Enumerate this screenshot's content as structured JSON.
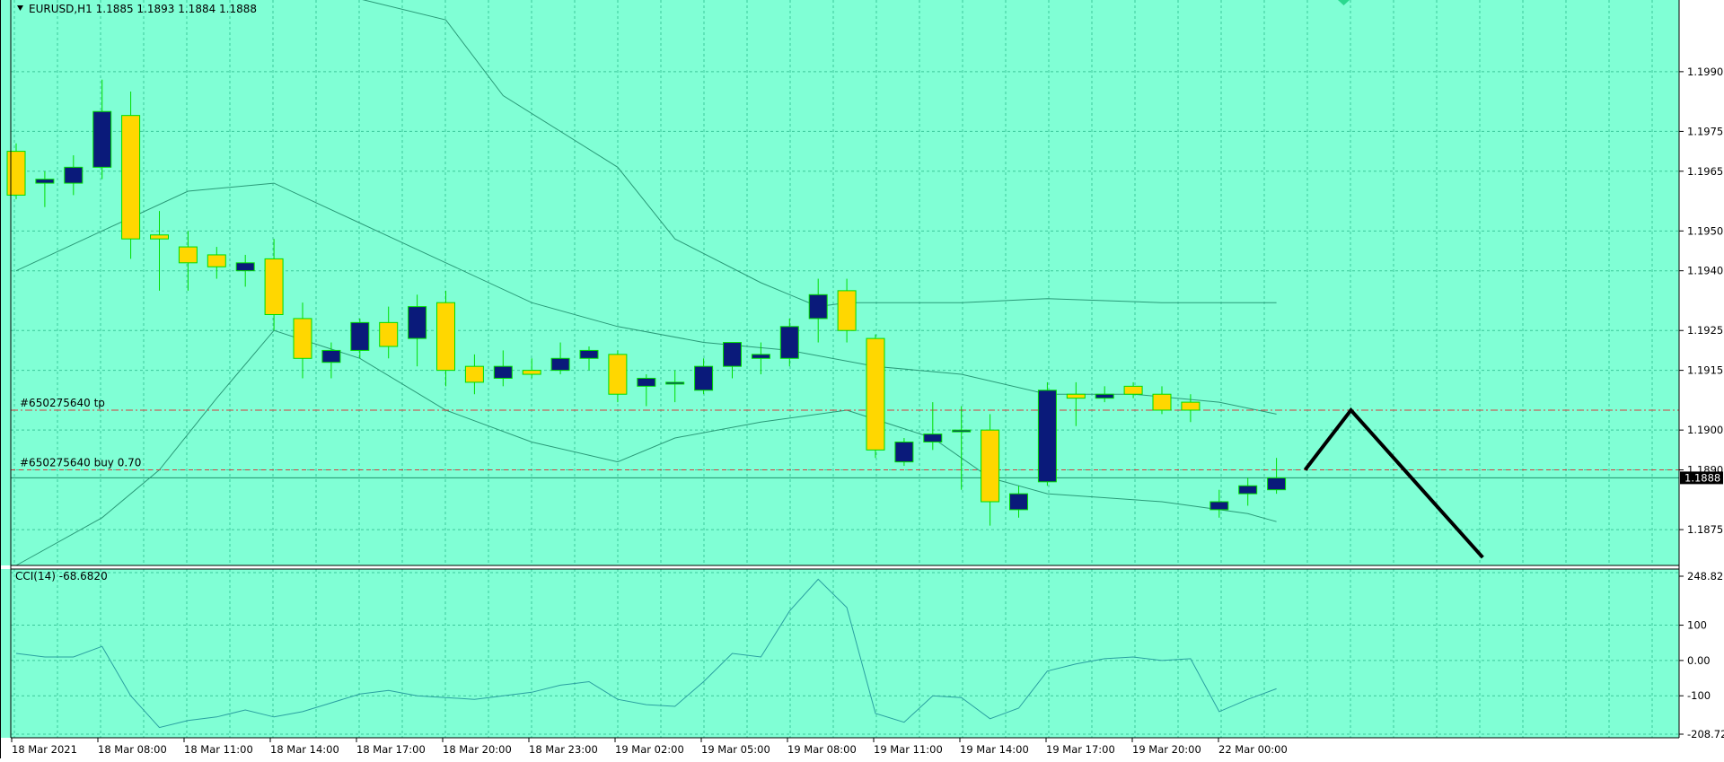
{
  "window": {
    "header": "EURUSD,H1  1.1885 1.1893 1.1884 1.1888",
    "sub_header": "CCI(14) -68.6820"
  },
  "colors": {
    "background": "#80ffd5",
    "grid": "#3cc89a",
    "bull_body": "#ffd700",
    "bear_body": "#0a1a7a",
    "wick": "#00dd00",
    "band": "#2a9a78",
    "cci_line": "#2aa0a0",
    "order_line": "#d43f3f",
    "price_label_bg": "#000000"
  },
  "chart_data": [
    {
      "type": "candlestick",
      "symbol": "EURUSD",
      "timeframe": "H1",
      "ylim": [
        1.1866,
        1.2008
      ],
      "y_ticks": [
        "1.1990",
        "1.1975",
        "1.1965",
        "1.1950",
        "1.1940",
        "1.1925",
        "1.1915",
        "1.1900",
        "1.1890",
        "1.1875"
      ],
      "current_price": "1.1888",
      "x_labels": [
        "18 Mar 2021",
        "18 Mar 08:00",
        "18 Mar 11:00",
        "18 Mar 14:00",
        "18 Mar 17:00",
        "18 Mar 20:00",
        "18 Mar 23:00",
        "19 Mar 02:00",
        "19 Mar 05:00",
        "19 Mar 08:00",
        "19 Mar 11:00",
        "19 Mar 14:00",
        "19 Mar 17:00",
        "19 Mar 20:00",
        "22 Mar 00:00"
      ],
      "candles": [
        {
          "o": 1.197,
          "h": 1.1972,
          "l": 1.1958,
          "c": 1.1959
        },
        {
          "o": 1.1962,
          "h": 1.1965,
          "l": 1.1956,
          "c": 1.1963
        },
        {
          "o": 1.1962,
          "h": 1.1969,
          "l": 1.1959,
          "c": 1.1966
        },
        {
          "o": 1.1966,
          "h": 1.1988,
          "l": 1.1963,
          "c": 1.198
        },
        {
          "o": 1.1979,
          "h": 1.1985,
          "l": 1.1943,
          "c": 1.1948
        },
        {
          "o": 1.1949,
          "h": 1.1955,
          "l": 1.1935,
          "c": 1.1948
        },
        {
          "o": 1.1946,
          "h": 1.195,
          "l": 1.1935,
          "c": 1.1942
        },
        {
          "o": 1.1944,
          "h": 1.1946,
          "l": 1.1938,
          "c": 1.1941
        },
        {
          "o": 1.194,
          "h": 1.1944,
          "l": 1.1936,
          "c": 1.1942
        },
        {
          "o": 1.1943,
          "h": 1.1948,
          "l": 1.1925,
          "c": 1.1929
        },
        {
          "o": 1.1928,
          "h": 1.1932,
          "l": 1.1913,
          "c": 1.1918
        },
        {
          "o": 1.1917,
          "h": 1.1922,
          "l": 1.1913,
          "c": 1.192
        },
        {
          "o": 1.192,
          "h": 1.1928,
          "l": 1.1918,
          "c": 1.1927
        },
        {
          "o": 1.1927,
          "h": 1.1931,
          "l": 1.1918,
          "c": 1.1921
        },
        {
          "o": 1.1923,
          "h": 1.1934,
          "l": 1.1916,
          "c": 1.1931
        },
        {
          "o": 1.1932,
          "h": 1.1935,
          "l": 1.1911,
          "c": 1.1915
        },
        {
          "o": 1.1916,
          "h": 1.1919,
          "l": 1.1909,
          "c": 1.1912
        },
        {
          "o": 1.1913,
          "h": 1.192,
          "l": 1.1911,
          "c": 1.1916
        },
        {
          "o": 1.1915,
          "h": 1.1918,
          "l": 1.1913,
          "c": 1.1914
        },
        {
          "o": 1.1915,
          "h": 1.1922,
          "l": 1.1914,
          "c": 1.1918
        },
        {
          "o": 1.1918,
          "h": 1.1921,
          "l": 1.1915,
          "c": 1.192
        },
        {
          "o": 1.1919,
          "h": 1.192,
          "l": 1.1907,
          "c": 1.1909
        },
        {
          "o": 1.1911,
          "h": 1.1914,
          "l": 1.1906,
          "c": 1.1913
        },
        {
          "o": 1.1912,
          "h": 1.1915,
          "l": 1.1907,
          "c": 1.1912
        },
        {
          "o": 1.191,
          "h": 1.1918,
          "l": 1.1909,
          "c": 1.1916
        },
        {
          "o": 1.1916,
          "h": 1.1922,
          "l": 1.1913,
          "c": 1.1922
        },
        {
          "o": 1.1918,
          "h": 1.1922,
          "l": 1.1914,
          "c": 1.1919
        },
        {
          "o": 1.1918,
          "h": 1.1928,
          "l": 1.1916,
          "c": 1.1926
        },
        {
          "o": 1.1928,
          "h": 1.1938,
          "l": 1.1922,
          "c": 1.1934
        },
        {
          "o": 1.1935,
          "h": 1.1938,
          "l": 1.1922,
          "c": 1.1925
        },
        {
          "o": 1.1923,
          "h": 1.1924,
          "l": 1.1893,
          "c": 1.1895
        },
        {
          "o": 1.1892,
          "h": 1.1898,
          "l": 1.1891,
          "c": 1.1897
        },
        {
          "o": 1.1897,
          "h": 1.1907,
          "l": 1.1895,
          "c": 1.1899
        },
        {
          "o": 1.19,
          "h": 1.1906,
          "l": 1.1885,
          "c": 1.19
        },
        {
          "o": 1.19,
          "h": 1.1904,
          "l": 1.1876,
          "c": 1.1882
        },
        {
          "o": 1.188,
          "h": 1.1886,
          "l": 1.1878,
          "c": 1.1884
        },
        {
          "o": 1.1887,
          "h": 1.1912,
          "l": 1.1886,
          "c": 1.191
        },
        {
          "o": 1.1909,
          "h": 1.1912,
          "l": 1.1901,
          "c": 1.1908
        },
        {
          "o": 1.1908,
          "h": 1.1911,
          "l": 1.1907,
          "c": 1.1909
        },
        {
          "o": 1.1911,
          "h": 1.1912,
          "l": 1.1908,
          "c": 1.1909
        },
        {
          "o": 1.1909,
          "h": 1.1911,
          "l": 1.1904,
          "c": 1.1905
        },
        {
          "o": 1.1907,
          "h": 1.1909,
          "l": 1.1902,
          "c": 1.1905
        },
        {
          "o": 1.188,
          "h": 1.1885,
          "l": 1.1878,
          "c": 1.1882
        },
        {
          "o": 1.1884,
          "h": 1.1888,
          "l": 1.1881,
          "c": 1.1886
        },
        {
          "o": 1.1885,
          "h": 1.1893,
          "l": 1.1884,
          "c": 1.1888
        }
      ],
      "bands_upper": [
        {
          "i": 11,
          "v": 1.201
        },
        {
          "i": 15,
          "v": 1.2003
        },
        {
          "i": 17,
          "v": 1.1984
        },
        {
          "i": 21,
          "v": 1.1966
        },
        {
          "i": 23,
          "v": 1.1948
        },
        {
          "i": 26,
          "v": 1.1937
        },
        {
          "i": 28,
          "v": 1.1931
        },
        {
          "i": 29,
          "v": 1.1932
        },
        {
          "i": 33,
          "v": 1.1932
        },
        {
          "i": 36,
          "v": 1.1933
        },
        {
          "i": 40,
          "v": 1.1932
        },
        {
          "i": 44,
          "v": 1.1932
        }
      ],
      "bands_middle": [
        {
          "i": 0,
          "v": 1.194
        },
        {
          "i": 3,
          "v": 1.195
        },
        {
          "i": 6,
          "v": 1.196
        },
        {
          "i": 9,
          "v": 1.1962
        },
        {
          "i": 12,
          "v": 1.1952
        },
        {
          "i": 15,
          "v": 1.1942
        },
        {
          "i": 18,
          "v": 1.1932
        },
        {
          "i": 21,
          "v": 1.1926
        },
        {
          "i": 24,
          "v": 1.1922
        },
        {
          "i": 27,
          "v": 1.192
        },
        {
          "i": 30,
          "v": 1.1916
        },
        {
          "i": 33,
          "v": 1.1914
        },
        {
          "i": 36,
          "v": 1.1909
        },
        {
          "i": 39,
          "v": 1.1909
        },
        {
          "i": 42,
          "v": 1.1907
        },
        {
          "i": 44,
          "v": 1.1904
        }
      ],
      "bands_lower": [
        {
          "i": 0,
          "v": 1.1866
        },
        {
          "i": 3,
          "v": 1.1878
        },
        {
          "i": 5,
          "v": 1.189
        },
        {
          "i": 7,
          "v": 1.1908
        },
        {
          "i": 9,
          "v": 1.1925
        },
        {
          "i": 12,
          "v": 1.1918
        },
        {
          "i": 15,
          "v": 1.1905
        },
        {
          "i": 18,
          "v": 1.1897
        },
        {
          "i": 21,
          "v": 1.1892
        },
        {
          "i": 23,
          "v": 1.1898
        },
        {
          "i": 26,
          "v": 1.1902
        },
        {
          "i": 29,
          "v": 1.1905
        },
        {
          "i": 32,
          "v": 1.1898
        },
        {
          "i": 34,
          "v": 1.1888
        },
        {
          "i": 36,
          "v": 1.1884
        },
        {
          "i": 40,
          "v": 1.1882
        },
        {
          "i": 43,
          "v": 1.1879
        },
        {
          "i": 44,
          "v": 1.1877
        }
      ],
      "order_lines": [
        {
          "label": "#650275640 tp",
          "price": 1.1905,
          "style": "dashdot"
        },
        {
          "label": "#650275640 buy 0.70",
          "price": 1.189,
          "style": "dash"
        }
      ],
      "projection": [
        {
          "i": 45,
          "v": 1.189
        },
        {
          "i": 46.6,
          "v": 1.1905
        },
        {
          "i": 51.2,
          "v": 1.1868
        }
      ]
    },
    {
      "type": "line",
      "name": "CCI(14)",
      "ylim": [
        -208.725,
        248.828
      ],
      "y_ticks": [
        "248.828",
        "100",
        "0.00",
        "-100",
        "-208.725"
      ],
      "values": [
        20,
        10,
        10,
        40,
        -100,
        -190,
        -170,
        -160,
        -140,
        -160,
        -145,
        -120,
        -95,
        -85,
        -100,
        -105,
        -110,
        -100,
        -90,
        -70,
        -60,
        -110,
        -125,
        -130,
        -60,
        20,
        10,
        140,
        230,
        150,
        -150,
        -175,
        -100,
        -105,
        -165,
        -135,
        -30,
        -10,
        5,
        10,
        0,
        5,
        -145,
        -110,
        -80
      ]
    }
  ]
}
